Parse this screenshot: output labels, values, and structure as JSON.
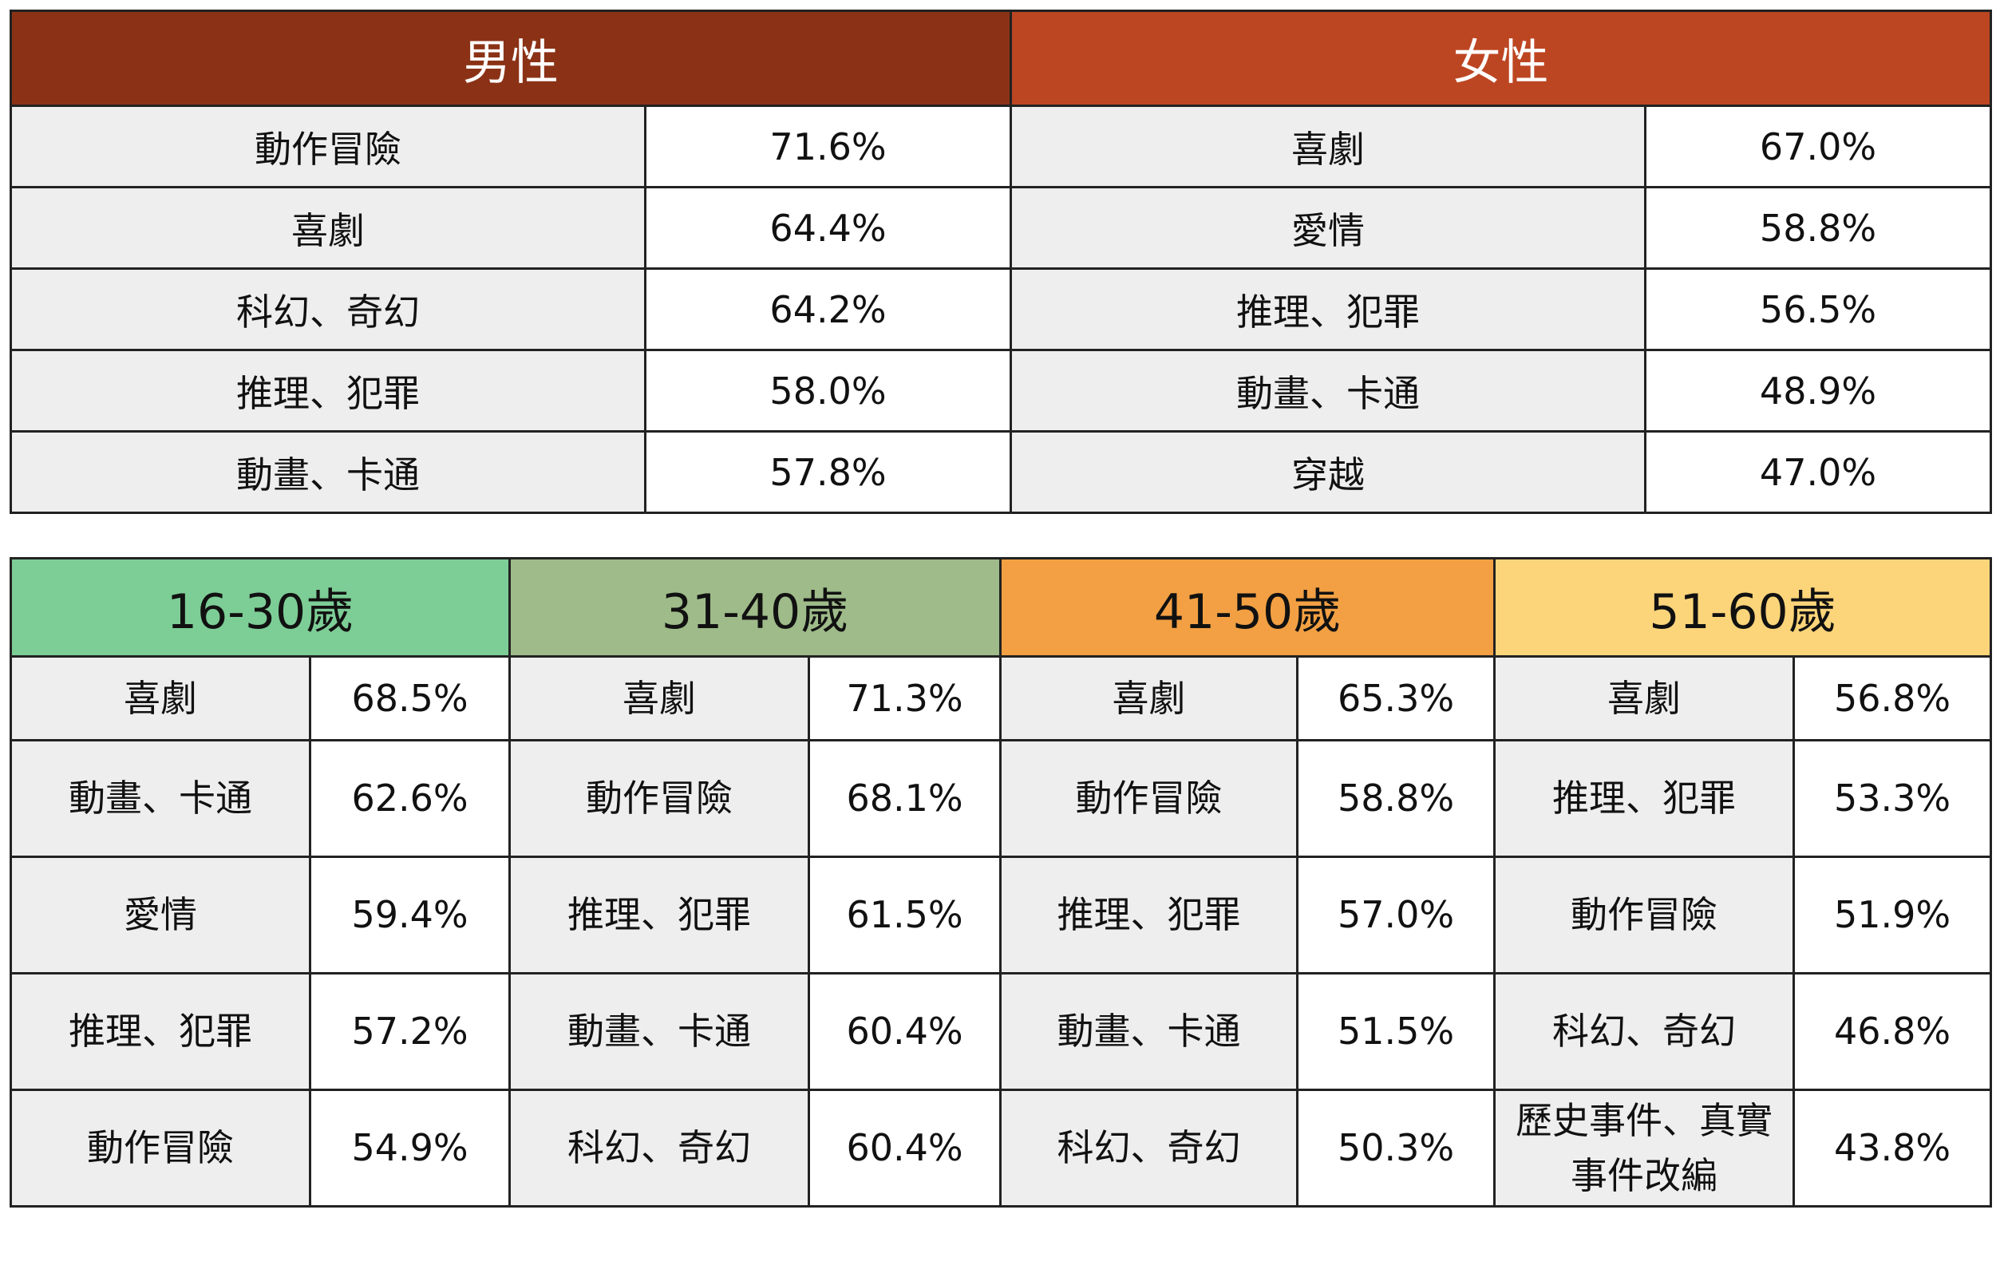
{
  "chart_data": [
    {
      "type": "table",
      "groups": [
        {
          "name": "男性",
          "color": "#8B3216",
          "rows": [
            {
              "genre": "動作冒險",
              "value": "71.6%"
            },
            {
              "genre": "喜劇",
              "value": "64.4%"
            },
            {
              "genre": "科幻、奇幻",
              "value": "64.2%"
            },
            {
              "genre": "推理、犯罪",
              "value": "58.0%"
            },
            {
              "genre": "動畫、卡通",
              "value": "57.8%"
            }
          ]
        },
        {
          "name": "女性",
          "color": "#BD4622",
          "rows": [
            {
              "genre": "喜劇",
              "value": "67.0%"
            },
            {
              "genre": "愛情",
              "value": "58.8%"
            },
            {
              "genre": "推理、犯罪",
              "value": "56.5%"
            },
            {
              "genre": "動畫、卡通",
              "value": "48.9%"
            },
            {
              "genre": "穿越",
              "value": "47.0%"
            }
          ]
        }
      ]
    },
    {
      "type": "table",
      "groups": [
        {
          "name": "16-30歲",
          "color": "#7DCD96",
          "rows": [
            {
              "genre": "喜劇",
              "value": "68.5%"
            },
            {
              "genre": "動畫、卡通",
              "value": "62.6%"
            },
            {
              "genre": "愛情",
              "value": "59.4%"
            },
            {
              "genre": "推理、犯罪",
              "value": "57.2%"
            },
            {
              "genre": "動作冒險",
              "value": "54.9%"
            }
          ]
        },
        {
          "name": "31-40歲",
          "color": "#9EBB89",
          "rows": [
            {
              "genre": "喜劇",
              "value": "71.3%"
            },
            {
              "genre": "動作冒險",
              "value": "68.1%"
            },
            {
              "genre": "推理、犯罪",
              "value": "61.5%"
            },
            {
              "genre": "動畫、卡通",
              "value": "60.4%"
            },
            {
              "genre": "科幻、奇幻",
              "value": "60.4%"
            }
          ]
        },
        {
          "name": "41-50歲",
          "color": "#F2A043",
          "rows": [
            {
              "genre": "喜劇",
              "value": "65.3%"
            },
            {
              "genre": "動作冒險",
              "value": "58.8%"
            },
            {
              "genre": "推理、犯罪",
              "value": "57.0%"
            },
            {
              "genre": "動畫、卡通",
              "value": "51.5%"
            },
            {
              "genre": "科幻、奇幻",
              "value": "50.3%"
            }
          ]
        },
        {
          "name": "51-60歲",
          "color": "#FCD57A",
          "rows": [
            {
              "genre": "喜劇",
              "value": "56.8%"
            },
            {
              "genre": "推理、犯罪",
              "value": "53.3%"
            },
            {
              "genre": "動作冒險",
              "value": "51.9%"
            },
            {
              "genre": "科幻、奇幻",
              "value": "46.8%"
            },
            {
              "genre": "歷史事件、真實事件改編",
              "value": "43.8%"
            }
          ]
        }
      ]
    }
  ]
}
